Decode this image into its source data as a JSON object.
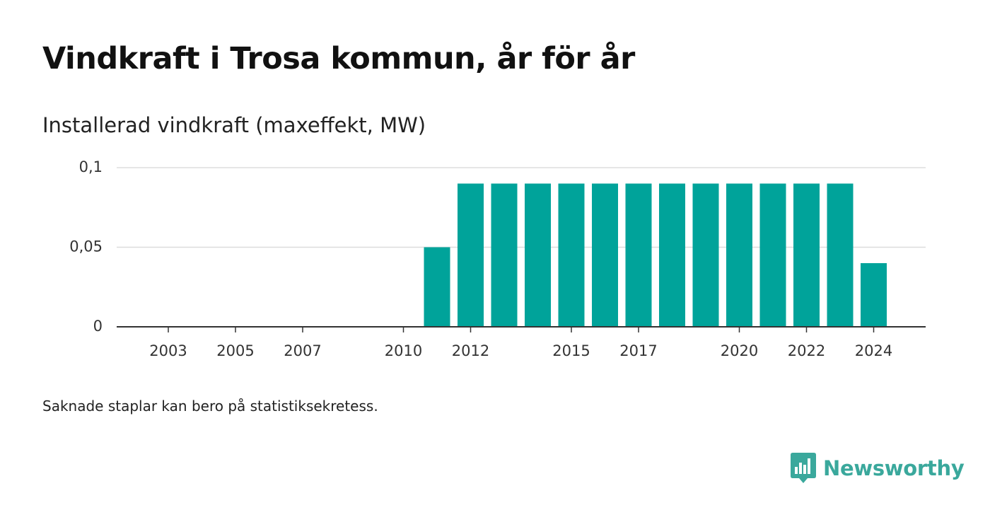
{
  "title": "Vindkraft i Trosa kommun, år för år",
  "subtitle": "Installerad vindkraft (maxeffekt, MW)",
  "note": "Saknade staplar kan bero på statistiksekretess.",
  "brand": {
    "name": "Newsworthy",
    "logo_icon": "bar-chart-speech-bubble-icon",
    "color": "#3aa89c"
  },
  "chart_data": {
    "type": "bar",
    "bar_color": "#00a39a",
    "categories": [
      2003,
      2004,
      2005,
      2006,
      2007,
      2008,
      2009,
      2010,
      2011,
      2012,
      2013,
      2014,
      2015,
      2016,
      2017,
      2018,
      2019,
      2020,
      2021,
      2022,
      2023,
      2024
    ],
    "values": [
      0,
      0,
      0,
      0,
      0,
      0,
      0,
      0,
      0.05,
      0.09,
      0.09,
      0.09,
      0.09,
      0.09,
      0.09,
      0.09,
      0.09,
      0.09,
      0.09,
      0.09,
      0.09,
      0.04
    ],
    "x_tick_labels": [
      "2003",
      "2005",
      "2007",
      "2010",
      "2012",
      "2015",
      "2017",
      "2020",
      "2022",
      "2024"
    ],
    "y_ticks": [
      0,
      0.05,
      0.1
    ],
    "y_tick_labels": [
      "0",
      "0,05",
      "0,1"
    ],
    "ylim": [
      0,
      0.1
    ],
    "grid": "horizontal",
    "legend": "none",
    "xlabel": "",
    "ylabel": ""
  }
}
